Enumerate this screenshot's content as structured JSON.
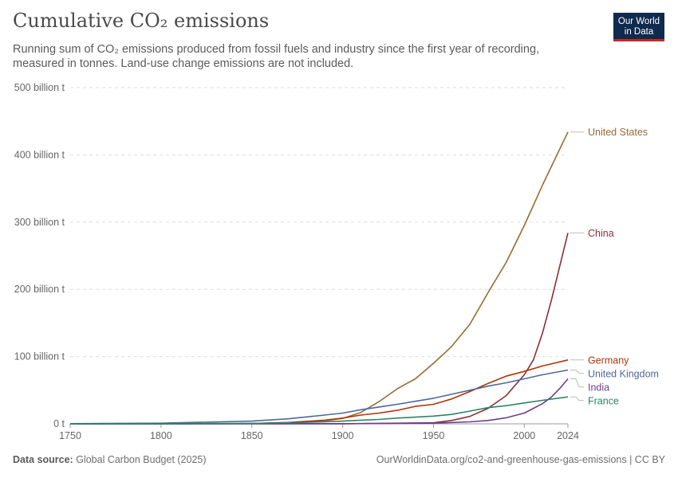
{
  "header": {
    "title": "Cumulative CO₂ emissions",
    "subtitle": "Running sum of CO₂ emissions produced from fossil fuels and industry since the first year of recording, measured in tonnes. Land-use change emissions are not included.",
    "logo_line1": "Our World",
    "logo_line2": "in Data"
  },
  "footer": {
    "source_label": "Data source:",
    "source_value": "Global Carbon Budget (2025)",
    "url": "OurWorldinData.org/co2-and-greenhouse-gas-emissions | CC BY"
  },
  "chart_data": {
    "type": "line",
    "title": "Cumulative CO₂ emissions",
    "xlabel": "",
    "ylabel": "",
    "xlim": [
      1750,
      2024
    ],
    "ylim": [
      0,
      500
    ],
    "y_unit": "billion t",
    "grid": "horizontal dashed",
    "legend": "right, inline labels at line ends",
    "x_ticks": [
      {
        "value": 1750,
        "label": "1750"
      },
      {
        "value": 1800,
        "label": "1800"
      },
      {
        "value": 1850,
        "label": "1850"
      },
      {
        "value": 1900,
        "label": "1900"
      },
      {
        "value": 1950,
        "label": "1950"
      },
      {
        "value": 2000,
        "label": "2000"
      },
      {
        "value": 2024,
        "label": "2024"
      }
    ],
    "y_ticks": [
      {
        "value": 0,
        "label": "0 t"
      },
      {
        "value": 100,
        "label": "100 billion t"
      },
      {
        "value": 200,
        "label": "200 billion t"
      },
      {
        "value": 300,
        "label": "300 billion t"
      },
      {
        "value": 400,
        "label": "400 billion t"
      },
      {
        "value": 500,
        "label": "500 billion t"
      }
    ],
    "series": [
      {
        "name": "United States",
        "color": "#9a6a33",
        "label_value": 434,
        "x": [
          1750,
          1800,
          1850,
          1870,
          1890,
          1900,
          1910,
          1920,
          1930,
          1940,
          1950,
          1960,
          1970,
          1980,
          1990,
          2000,
          2010,
          2024
        ],
        "y": [
          0,
          0,
          0.5,
          1.5,
          4.5,
          8,
          17,
          33,
          52,
          67,
          90,
          115,
          148,
          195,
          240,
          295,
          355,
          434
        ]
      },
      {
        "name": "China",
        "color": "#883039",
        "label_value": 284,
        "x": [
          1750,
          1900,
          1950,
          1960,
          1970,
          1980,
          1990,
          2000,
          2005,
          2010,
          2015,
          2020,
          2024
        ],
        "y": [
          0,
          0,
          1.5,
          5,
          11,
          23,
          42,
          73,
          95,
          135,
          185,
          240,
          284
        ]
      },
      {
        "name": "Germany",
        "color": "#b13507",
        "label_value": 95,
        "x": [
          1750,
          1850,
          1870,
          1890,
          1900,
          1910,
          1920,
          1930,
          1940,
          1950,
          1960,
          1970,
          1980,
          1990,
          2000,
          2010,
          2024
        ],
        "y": [
          0,
          0.5,
          2,
          5.5,
          8.5,
          13,
          16,
          20,
          26,
          29,
          37,
          48,
          60,
          71,
          78,
          86,
          95
        ]
      },
      {
        "name": "United Kingdom",
        "color": "#4c6a9c",
        "label_value": 80,
        "x": [
          1750,
          1800,
          1850,
          1870,
          1890,
          1900,
          1910,
          1920,
          1930,
          1940,
          1950,
          1960,
          1970,
          1980,
          1990,
          2000,
          2010,
          2024
        ],
        "y": [
          0.2,
          1,
          4,
          7.5,
          13,
          16,
          21,
          25,
          29,
          33.5,
          38,
          44,
          50,
          56,
          61,
          67,
          73,
          80
        ]
      },
      {
        "name": "India",
        "color": "#6d3e91",
        "label_value": 67,
        "x": [
          1750,
          1900,
          1950,
          1970,
          1980,
          1990,
          2000,
          2010,
          2015,
          2020,
          2024
        ],
        "y": [
          0,
          0.2,
          1,
          3,
          5,
          9,
          16,
          30,
          40,
          54,
          67
        ]
      },
      {
        "name": "France",
        "color": "#2c8465",
        "label_value": 40,
        "x": [
          1750,
          1850,
          1870,
          1890,
          1900,
          1910,
          1920,
          1930,
          1940,
          1950,
          1960,
          1970,
          1980,
          1990,
          2000,
          2010,
          2024
        ],
        "y": [
          0,
          0.5,
          1.5,
          3,
          4,
          5.5,
          6.5,
          8.5,
          10,
          11.5,
          14,
          19,
          24,
          27,
          31,
          35,
          40
        ]
      }
    ]
  }
}
